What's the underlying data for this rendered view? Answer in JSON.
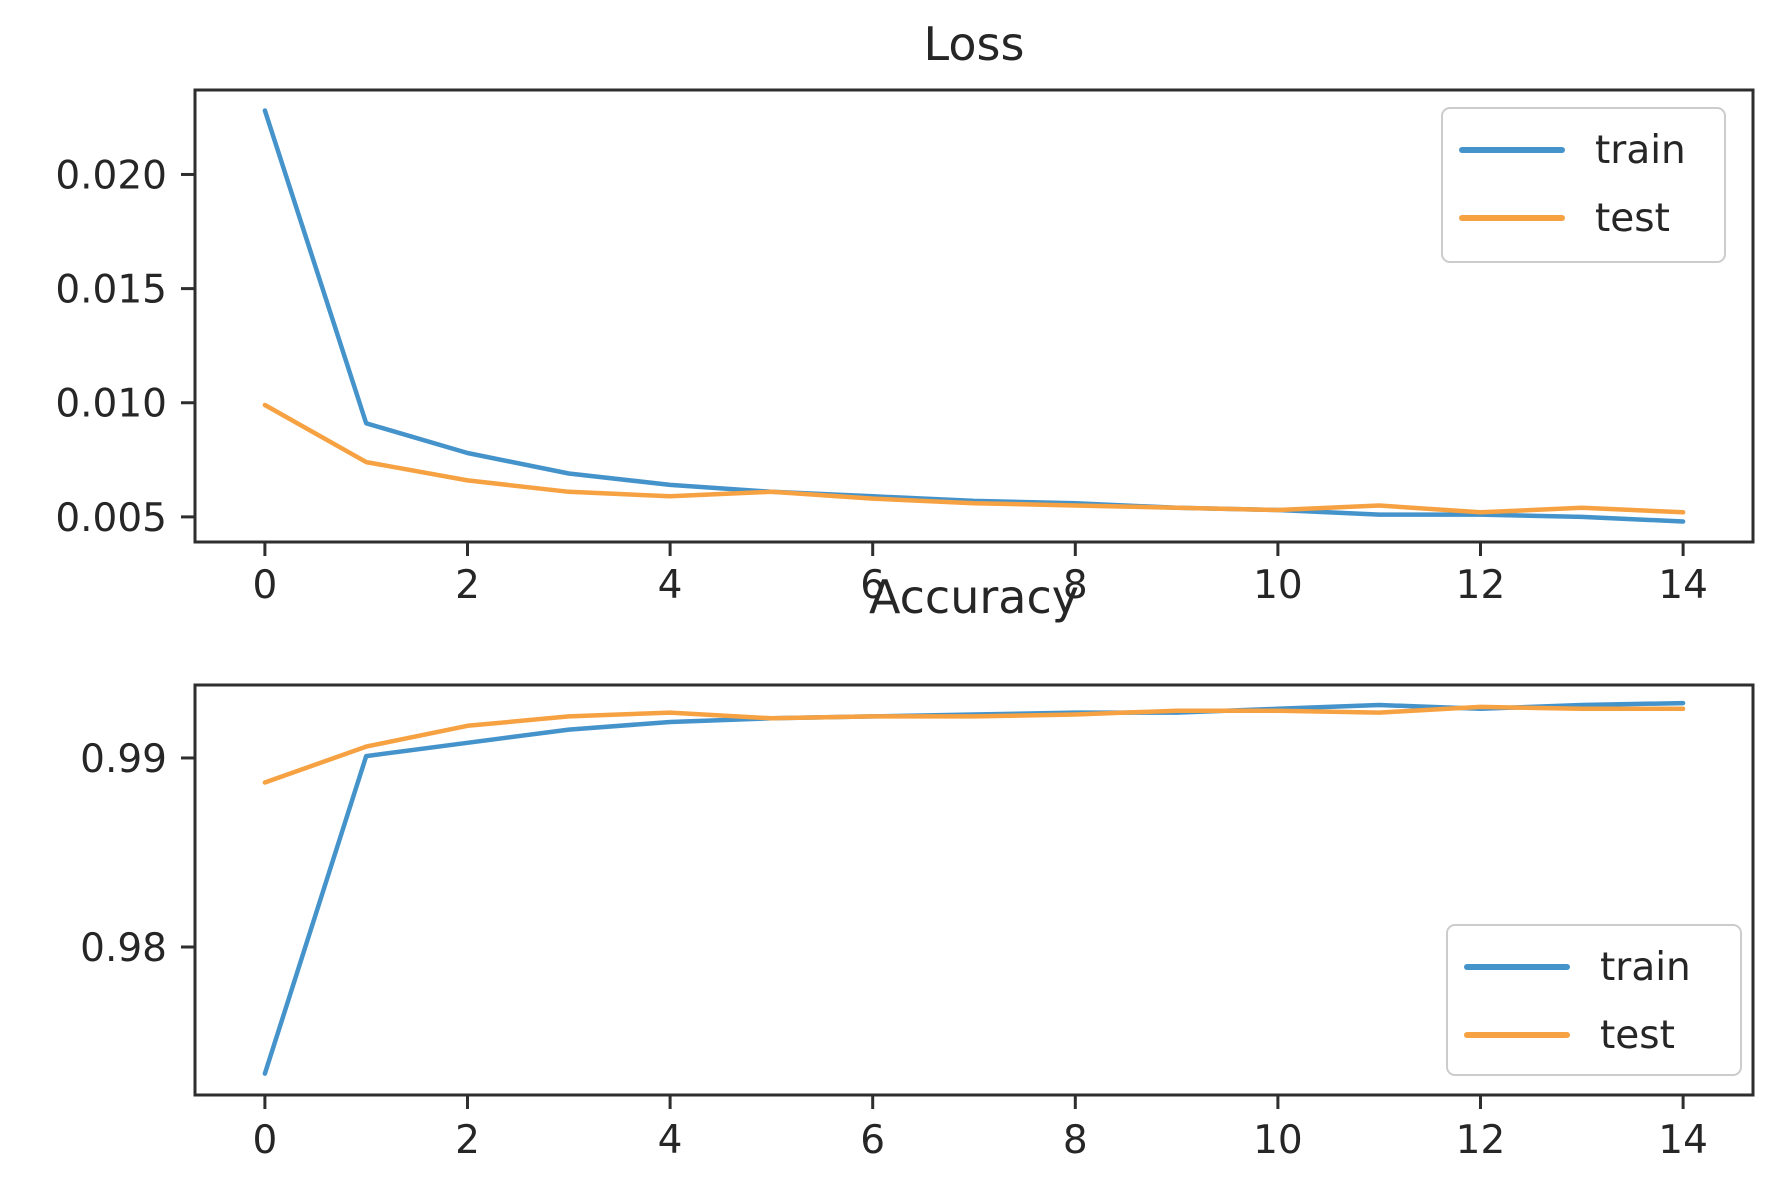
{
  "figure": {
    "background": "#ffffff",
    "spine_color": "#2e2e2e",
    "text_color": "#262626",
    "legend_border_color": "#cccccc"
  },
  "chart_data": [
    {
      "type": "line",
      "title": "Loss",
      "x": [
        0,
        1,
        2,
        3,
        4,
        5,
        6,
        7,
        8,
        9,
        10,
        11,
        12,
        13,
        14
      ],
      "series": [
        {
          "name": "train",
          "color": "#4593cb",
          "values": [
            0.0228,
            0.0091,
            0.0078,
            0.0069,
            0.0064,
            0.0061,
            0.0059,
            0.0057,
            0.0056,
            0.0054,
            0.0053,
            0.0051,
            0.0051,
            0.005,
            0.0048
          ]
        },
        {
          "name": "test",
          "color": "#f6a142",
          "values": [
            0.0099,
            0.0074,
            0.0066,
            0.0061,
            0.0059,
            0.0061,
            0.0058,
            0.0056,
            0.0055,
            0.0054,
            0.0053,
            0.0055,
            0.0052,
            0.0054,
            0.0052
          ]
        }
      ],
      "xlim": [
        -0.69,
        14.69
      ],
      "ylim": [
        0.0039,
        0.0237
      ],
      "xticks": [
        0,
        2,
        4,
        6,
        8,
        10,
        12,
        14
      ],
      "xtick_labels": [
        "0",
        "2",
        "4",
        "6",
        "8",
        "10",
        "12",
        "14"
      ],
      "yticks": [
        0.005,
        0.01,
        0.015,
        0.02
      ],
      "ytick_labels": [
        "0.005",
        "0.010",
        "0.015",
        "0.020"
      ],
      "grid": false,
      "legend": {
        "position": "upper right",
        "entries": [
          "train",
          "test"
        ]
      }
    },
    {
      "type": "line",
      "title": "Accuracy",
      "x": [
        0,
        1,
        2,
        3,
        4,
        5,
        6,
        7,
        8,
        9,
        10,
        11,
        12,
        13,
        14
      ],
      "series": [
        {
          "name": "train",
          "color": "#4593cb",
          "values": [
            0.9733,
            0.9901,
            0.9908,
            0.9915,
            0.9919,
            0.9921,
            0.9922,
            0.9923,
            0.9924,
            0.9924,
            0.9926,
            0.9928,
            0.9926,
            0.9928,
            0.9929
          ]
        },
        {
          "name": "test",
          "color": "#f6a142",
          "values": [
            0.9887,
            0.9906,
            0.9917,
            0.9922,
            0.9924,
            0.9921,
            0.9922,
            0.9922,
            0.9923,
            0.9925,
            0.9925,
            0.9924,
            0.9927,
            0.9926,
            0.9926
          ]
        }
      ],
      "xlim": [
        -0.69,
        14.69
      ],
      "ylim": [
        0.97217,
        0.99386
      ],
      "xticks": [
        0,
        2,
        4,
        6,
        8,
        10,
        12,
        14
      ],
      "xtick_labels": [
        "0",
        "2",
        "4",
        "6",
        "8",
        "10",
        "12",
        "14"
      ],
      "yticks": [
        0.98,
        0.99
      ],
      "ytick_labels": [
        "0.98",
        "0.99"
      ],
      "grid": false,
      "legend": {
        "position": "lower right",
        "entries": [
          "train",
          "test"
        ]
      }
    }
  ]
}
